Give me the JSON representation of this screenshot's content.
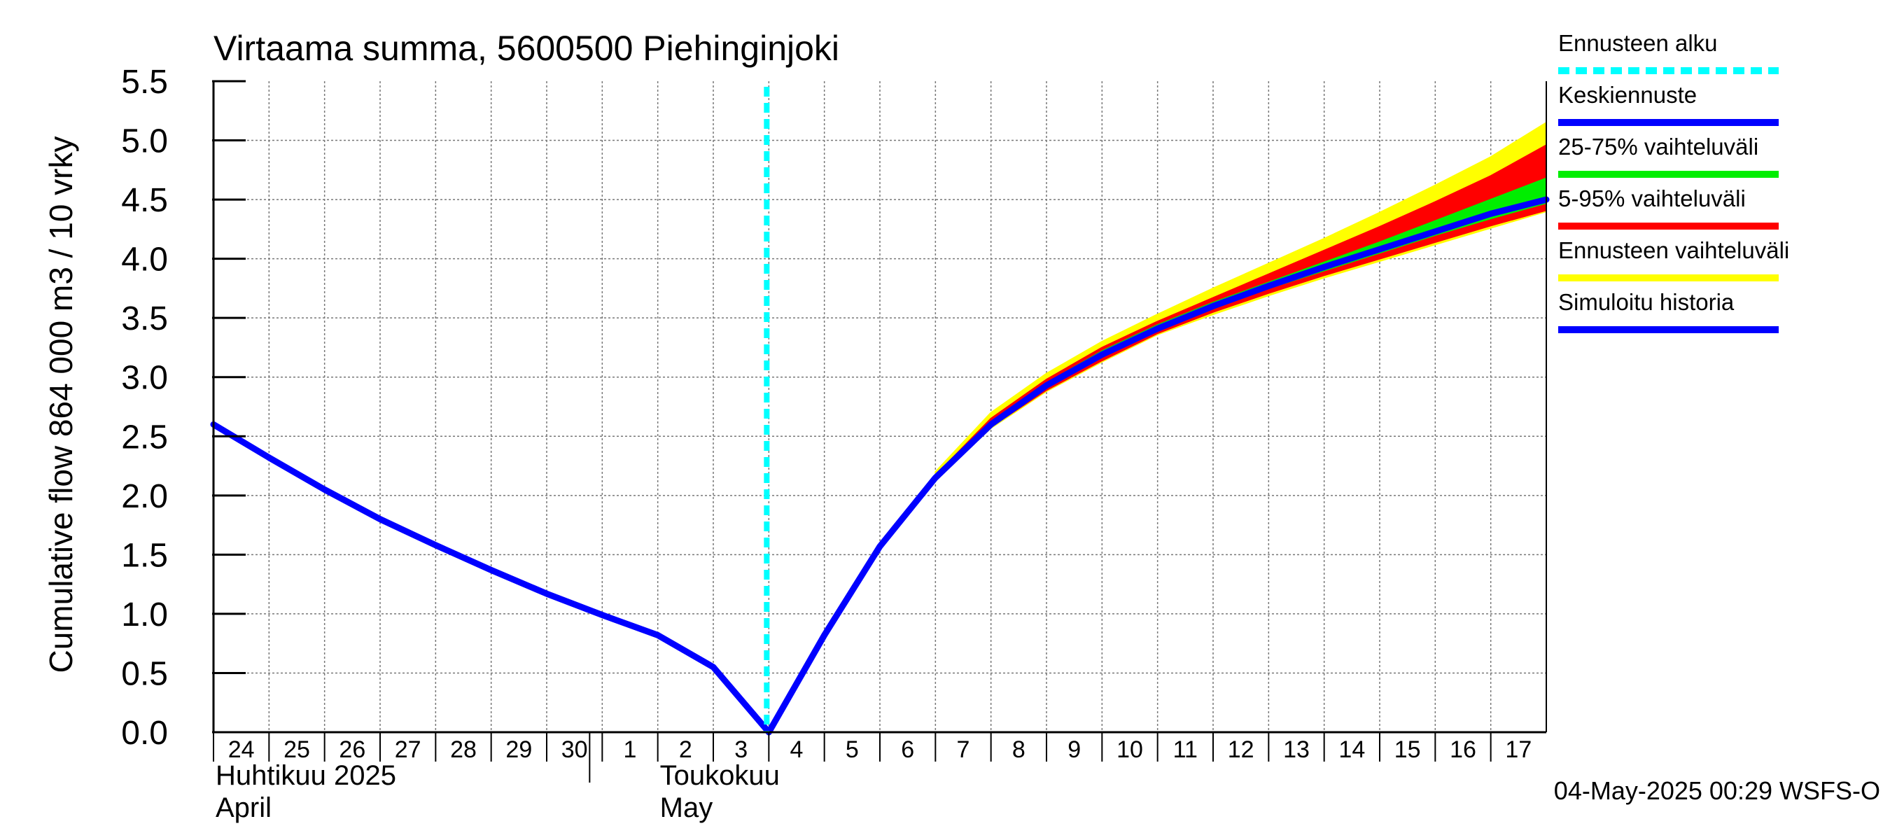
{
  "chart_data": {
    "type": "line",
    "title": "Virtaama summa, 5600500 Piehinginjoki",
    "ylabel": "Cumulative flow     864 000 m3 / 10 vrky",
    "ylim": [
      0,
      5.5
    ],
    "yticks": [
      "0.0",
      "0.5",
      "1.0",
      "1.5",
      "2.0",
      "2.5",
      "3.0",
      "3.5",
      "4.0",
      "4.5",
      "5.0",
      "5.5"
    ],
    "xlim": [
      "2025-04-24",
      "2025-05-18"
    ],
    "xticks": [
      {
        "date": "2025-04-24",
        "label": "24"
      },
      {
        "date": "2025-04-25",
        "label": "25"
      },
      {
        "date": "2025-04-26",
        "label": "26"
      },
      {
        "date": "2025-04-27",
        "label": "27"
      },
      {
        "date": "2025-04-28",
        "label": "28"
      },
      {
        "date": "2025-04-29",
        "label": "29"
      },
      {
        "date": "2025-04-30",
        "label": "30"
      },
      {
        "date": "2025-05-01",
        "label": "1"
      },
      {
        "date": "2025-05-02",
        "label": "2"
      },
      {
        "date": "2025-05-03",
        "label": "3"
      },
      {
        "date": "2025-05-04",
        "label": "4"
      },
      {
        "date": "2025-05-05",
        "label": "5"
      },
      {
        "date": "2025-05-06",
        "label": "6"
      },
      {
        "date": "2025-05-07",
        "label": "7"
      },
      {
        "date": "2025-05-08",
        "label": "8"
      },
      {
        "date": "2025-05-09",
        "label": "9"
      },
      {
        "date": "2025-05-10",
        "label": "10"
      },
      {
        "date": "2025-05-11",
        "label": "11"
      },
      {
        "date": "2025-05-12",
        "label": "12"
      },
      {
        "date": "2025-05-13",
        "label": "13"
      },
      {
        "date": "2025-05-14",
        "label": "14"
      },
      {
        "date": "2025-05-15",
        "label": "15"
      },
      {
        "date": "2025-05-16",
        "label": "16"
      },
      {
        "date": "2025-05-17",
        "label": "17"
      }
    ],
    "month_labels": [
      {
        "date": "2025-04-24",
        "line1": "Huhtikuu  2025",
        "line2": "April"
      },
      {
        "date": "2025-05-02",
        "line1": "Toukokuu",
        "line2": "May"
      }
    ],
    "month_divider": "2025-05-01",
    "forecast_start": "2025-05-04",
    "grid": true,
    "legend_position": "right",
    "series": [
      {
        "name": "Simuloitu historia",
        "color": "#0000ff",
        "points": [
          [
            "2025-04-24",
            2.6
          ],
          [
            "2025-04-25",
            2.32
          ],
          [
            "2025-04-26",
            2.05
          ],
          [
            "2025-04-27",
            1.8
          ],
          [
            "2025-04-28",
            1.58
          ],
          [
            "2025-04-29",
            1.37
          ],
          [
            "2025-04-30",
            1.17
          ],
          [
            "2025-05-01",
            0.99
          ],
          [
            "2025-05-02",
            0.82
          ],
          [
            "2025-05-03",
            0.55
          ],
          [
            "2025-05-04",
            0.0
          ]
        ]
      },
      {
        "name": "Keskiennuste",
        "color": "#0000ff",
        "points": [
          [
            "2025-05-04",
            0.0
          ],
          [
            "2025-05-05",
            0.82
          ],
          [
            "2025-05-06",
            1.57
          ],
          [
            "2025-05-07",
            2.15
          ],
          [
            "2025-05-08",
            2.6
          ],
          [
            "2025-05-09",
            2.93
          ],
          [
            "2025-05-10",
            3.19
          ],
          [
            "2025-05-11",
            3.41
          ],
          [
            "2025-05-12",
            3.6
          ],
          [
            "2025-05-13",
            3.77
          ],
          [
            "2025-05-14",
            3.93
          ],
          [
            "2025-05-15",
            4.08
          ],
          [
            "2025-05-16",
            4.23
          ],
          [
            "2025-05-17",
            4.38
          ],
          [
            "2025-05-18",
            4.5
          ]
        ]
      }
    ],
    "bands": [
      {
        "name": "Ennusteen vaihteluväli",
        "color": "#ffff00",
        "dates": [
          "2025-05-07",
          "2025-05-08",
          "2025-05-09",
          "2025-05-10",
          "2025-05-11",
          "2025-05-12",
          "2025-05-13",
          "2025-05-14",
          "2025-05-15",
          "2025-05-16",
          "2025-05-17",
          "2025-05-18"
        ],
        "lower": [
          2.13,
          2.57,
          2.88,
          3.13,
          3.36,
          3.53,
          3.69,
          3.84,
          3.98,
          4.12,
          4.26,
          4.4
        ],
        "upper": [
          2.2,
          2.7,
          3.03,
          3.3,
          3.53,
          3.75,
          3.96,
          4.17,
          4.39,
          4.62,
          4.86,
          5.15
        ]
      },
      {
        "name": "5-95% vaihteluväli",
        "color": "#ff0000",
        "dates": [
          "2025-05-07",
          "2025-05-08",
          "2025-05-09",
          "2025-05-10",
          "2025-05-11",
          "2025-05-12",
          "2025-05-13",
          "2025-05-14",
          "2025-05-15",
          "2025-05-16",
          "2025-05-17",
          "2025-05-18"
        ],
        "lower": [
          2.14,
          2.58,
          2.89,
          3.14,
          3.37,
          3.55,
          3.71,
          3.86,
          4.0,
          4.14,
          4.28,
          4.41
        ],
        "upper": [
          2.17,
          2.65,
          2.98,
          3.25,
          3.47,
          3.67,
          3.87,
          4.07,
          4.27,
          4.48,
          4.7,
          4.96
        ]
      },
      {
        "name": "25-75% vaihteluväli",
        "color": "#00ee00",
        "dates": [
          "2025-05-07",
          "2025-05-08",
          "2025-05-09",
          "2025-05-10",
          "2025-05-11",
          "2025-05-12",
          "2025-05-13",
          "2025-05-14",
          "2025-05-15",
          "2025-05-16",
          "2025-05-17",
          "2025-05-18"
        ],
        "lower": [
          2.15,
          2.59,
          2.91,
          3.17,
          3.39,
          3.58,
          3.75,
          3.9,
          4.05,
          4.2,
          4.34,
          4.47
        ],
        "upper": [
          2.16,
          2.62,
          2.95,
          3.22,
          3.44,
          3.63,
          3.8,
          3.97,
          4.14,
          4.32,
          4.5,
          4.68
        ]
      }
    ],
    "legend": [
      {
        "label": "Ennusteen alku",
        "color": "#00ffff",
        "style": "dashed"
      },
      {
        "label": "Keskiennuste",
        "color": "#0000ff",
        "style": "solid"
      },
      {
        "label": "25-75% vaihteluväli",
        "color": "#00ee00",
        "style": "solid"
      },
      {
        "label": "5-95% vaihteluväli",
        "color": "#ff0000",
        "style": "solid"
      },
      {
        "label": "Ennusteen vaihteluväli",
        "color": "#ffff00",
        "style": "solid"
      },
      {
        "label": "Simuloitu historia",
        "color": "#0000ff",
        "style": "solid"
      }
    ],
    "footer": "04-May-2025 00:29 WSFS-O"
  }
}
